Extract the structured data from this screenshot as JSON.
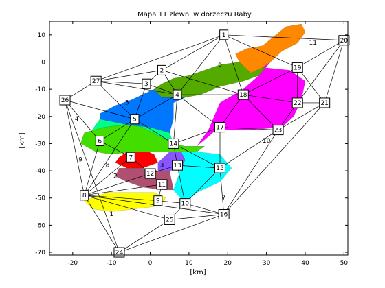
{
  "chart_data": {
    "type": "map",
    "title": "Mapa 11 zlewni w dorzeczu Raby",
    "xlabel": "[km]",
    "ylabel": "[km]",
    "xlim": [
      -26,
      51
    ],
    "ylim": [
      -71,
      15
    ],
    "xticks": [
      -20,
      -10,
      0,
      10,
      20,
      30,
      40,
      50
    ],
    "yticks": [
      10,
      0,
      -10,
      -20,
      -30,
      -40,
      -50,
      -60,
      -70
    ],
    "xtick_labels": [
      "-20",
      "-10",
      "0",
      "10",
      "20",
      "30",
      "40",
      "50"
    ],
    "ytick_labels": [
      "10",
      "0",
      "-10",
      "-20",
      "-30",
      "-40",
      "-50",
      "-60",
      "-70"
    ],
    "grid": false,
    "nodes": [
      {
        "id": "1",
        "label": "1",
        "x": 19,
        "y": 10
      },
      {
        "id": "2",
        "label": "2",
        "x": 3,
        "y": -3
      },
      {
        "id": "3",
        "label": "3",
        "x": -1,
        "y": -8
      },
      {
        "id": "4",
        "label": "4",
        "x": 7,
        "y": -12
      },
      {
        "id": "5",
        "label": "5",
        "x": -4,
        "y": -21
      },
      {
        "id": "6",
        "label": "6",
        "x": -13,
        "y": -29
      },
      {
        "id": "7",
        "label": "7",
        "x": -5,
        "y": -35
      },
      {
        "id": "8",
        "label": "8",
        "x": -17,
        "y": -49
      },
      {
        "id": "9",
        "label": "9",
        "x": 2,
        "y": -51
      },
      {
        "id": "10",
        "label": "10",
        "x": 9,
        "y": -52
      },
      {
        "id": "11",
        "label": "11",
        "x": 3,
        "y": -45
      },
      {
        "id": "12",
        "label": "12",
        "x": 0,
        "y": -41
      },
      {
        "id": "13",
        "label": "13",
        "x": 7,
        "y": -38
      },
      {
        "id": "14",
        "label": "14",
        "x": 6,
        "y": -30
      },
      {
        "id": "15",
        "label": "15",
        "x": 18,
        "y": -39
      },
      {
        "id": "16",
        "label": "16",
        "x": 19,
        "y": -56
      },
      {
        "id": "17",
        "label": "17",
        "x": 18,
        "y": -24
      },
      {
        "id": "18",
        "label": "18",
        "x": 24,
        "y": -12
      },
      {
        "id": "19",
        "label": "19",
        "x": 38,
        "y": -2
      },
      {
        "id": "20",
        "label": "20",
        "x": 50,
        "y": 8
      },
      {
        "id": "21",
        "label": "21",
        "x": 45,
        "y": -15
      },
      {
        "id": "22",
        "label": "22",
        "x": 38,
        "y": -15
      },
      {
        "id": "23",
        "label": "23",
        "x": 33,
        "y": -25
      },
      {
        "id": "24",
        "label": "24",
        "x": -8,
        "y": -70
      },
      {
        "id": "25",
        "label": "25",
        "x": 5,
        "y": -58
      },
      {
        "id": "26",
        "label": "26",
        "x": -22,
        "y": -14
      },
      {
        "id": "27",
        "label": "27",
        "x": -14,
        "y": -7
      }
    ],
    "edges": [
      [
        "1",
        "27"
      ],
      [
        "1",
        "2"
      ],
      [
        "1",
        "4"
      ],
      [
        "1",
        "20"
      ],
      [
        "1",
        "18"
      ],
      [
        "1",
        "19"
      ],
      [
        "27",
        "26"
      ],
      [
        "27",
        "2"
      ],
      [
        "27",
        "3"
      ],
      [
        "27",
        "5"
      ],
      [
        "27",
        "4"
      ],
      [
        "2",
        "3"
      ],
      [
        "2",
        "4"
      ],
      [
        "2",
        "18"
      ],
      [
        "3",
        "4"
      ],
      [
        "3",
        "5"
      ],
      [
        "4",
        "5"
      ],
      [
        "4",
        "14"
      ],
      [
        "4",
        "18"
      ],
      [
        "4",
        "17"
      ],
      [
        "5",
        "26"
      ],
      [
        "5",
        "6"
      ],
      [
        "5",
        "14"
      ],
      [
        "5",
        "8"
      ],
      [
        "26",
        "6"
      ],
      [
        "26",
        "8"
      ],
      [
        "26",
        "24"
      ],
      [
        "6",
        "7"
      ],
      [
        "6",
        "8"
      ],
      [
        "7",
        "12"
      ],
      [
        "7",
        "8"
      ],
      [
        "8",
        "12"
      ],
      [
        "8",
        "11"
      ],
      [
        "8",
        "9"
      ],
      [
        "8",
        "24"
      ],
      [
        "8",
        "25"
      ],
      [
        "8",
        "16"
      ],
      [
        "12",
        "13"
      ],
      [
        "12",
        "11"
      ],
      [
        "13",
        "15"
      ],
      [
        "13",
        "10"
      ],
      [
        "13",
        "14"
      ],
      [
        "14",
        "17"
      ],
      [
        "14",
        "15"
      ],
      [
        "11",
        "9"
      ],
      [
        "9",
        "10"
      ],
      [
        "10",
        "16"
      ],
      [
        "10",
        "25"
      ],
      [
        "10",
        "15"
      ],
      [
        "15",
        "16"
      ],
      [
        "15",
        "23"
      ],
      [
        "15",
        "17"
      ],
      [
        "16",
        "24"
      ],
      [
        "16",
        "23"
      ],
      [
        "16",
        "21"
      ],
      [
        "16",
        "25"
      ],
      [
        "17",
        "18"
      ],
      [
        "17",
        "23"
      ],
      [
        "18",
        "23"
      ],
      [
        "18",
        "22"
      ],
      [
        "18",
        "19"
      ],
      [
        "19",
        "20"
      ],
      [
        "19",
        "22"
      ],
      [
        "19",
        "21"
      ],
      [
        "20",
        "21"
      ],
      [
        "20",
        "22"
      ],
      [
        "21",
        "22"
      ],
      [
        "21",
        "23"
      ],
      [
        "22",
        "23"
      ],
      [
        "25",
        "24"
      ]
    ],
    "regions": [
      {
        "name": "1",
        "color": "#ffff00"
      },
      {
        "name": "2",
        "color": "#b05070"
      },
      {
        "name": "3",
        "color": "#8855ff"
      },
      {
        "name": "4",
        "color": "#00ff88"
      },
      {
        "name": "5",
        "color": "#0077ff"
      },
      {
        "name": "6",
        "color": "#55aa00"
      },
      {
        "name": "7",
        "color": "#00ffff"
      },
      {
        "name": "8",
        "color": "#ff0000"
      },
      {
        "name": "9",
        "color": "#44dd00"
      },
      {
        "name": "10",
        "color": "#ff00ff"
      },
      {
        "name": "11",
        "color": "#ff8800"
      }
    ]
  }
}
